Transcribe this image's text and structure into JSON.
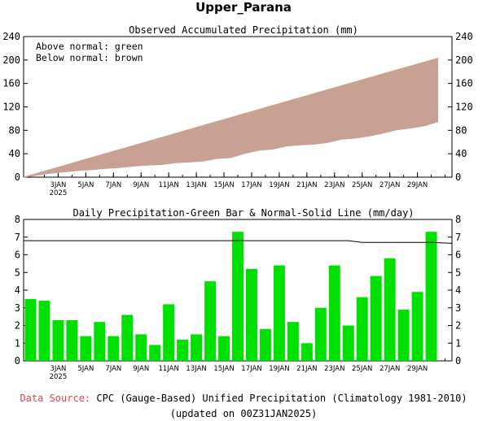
{
  "title": "Upper_Parana",
  "x_tick_labels": [
    "3JAN",
    "5JAN",
    "7JAN",
    "9JAN",
    "11JAN",
    "13JAN",
    "15JAN",
    "17JAN",
    "19JAN",
    "21JAN",
    "23JAN",
    "25JAN",
    "27JAN",
    "29JAN"
  ],
  "x_year_label": "2025",
  "legend": {
    "above": "Above normal: green",
    "below": "Below normal: brown"
  },
  "footer": {
    "source_label": "Data Source:",
    "source_text": "CPC (Gauge-Based) Unified Precipitation (Climatology 1981-2010)",
    "updated": "(updated on 00Z31JAN2025)"
  },
  "colors": {
    "below_fill": "#c8a194",
    "above_fill": "#00cc00",
    "bar": "#00e000",
    "line": "#000000"
  },
  "chart_data": [
    {
      "type": "area",
      "title": "Observed Accumulated Precipitation (mm)",
      "x_start": "1JAN2025",
      "x_end": "31JAN2025",
      "ylim": [
        0,
        240
      ],
      "yticks": [
        0,
        40,
        80,
        120,
        160,
        200,
        240
      ],
      "series": [
        {
          "name": "Observed",
          "values": [
            3.5,
            6.9,
            9.2,
            11.5,
            12.9,
            15.1,
            16.5,
            19.1,
            20.6,
            21.5,
            24.7,
            25.9,
            27.4,
            31.9,
            33.3,
            40.6,
            45.8,
            47.6,
            53.0,
            55.2,
            56.2,
            59.2,
            64.6,
            66.6,
            70.2,
            75.0,
            80.8,
            83.7,
            87.6,
            94.9
          ]
        },
        {
          "name": "Normal",
          "values": [
            6.8,
            13.6,
            20.4,
            27.2,
            34.0,
            40.8,
            47.6,
            54.3,
            61.1,
            67.9,
            74.7,
            81.5,
            88.3,
            95.1,
            101.9,
            108.7,
            115.4,
            122.2,
            129.0,
            135.8,
            142.5,
            149.3,
            156.1,
            162.8,
            169.6,
            176.3,
            183.1,
            189.8,
            196.5,
            203.2
          ]
        }
      ]
    },
    {
      "type": "bar",
      "title": "Daily Precipitation-Green Bar & Normal-Solid Line (mm/day)",
      "ylim": [
        0,
        8
      ],
      "yticks": [
        0,
        1,
        2,
        3,
        4,
        5,
        6,
        7,
        8
      ],
      "series": [
        {
          "name": "Daily",
          "values": [
            3.5,
            3.4,
            2.3,
            2.3,
            1.4,
            2.2,
            1.4,
            2.6,
            1.5,
            0.9,
            3.2,
            1.2,
            1.5,
            4.5,
            1.4,
            7.3,
            5.2,
            1.8,
            5.4,
            2.2,
            1.0,
            3.0,
            5.4,
            2.0,
            3.6,
            4.8,
            5.8,
            2.9,
            3.9,
            7.3
          ]
        },
        {
          "name": "Normal",
          "values": [
            6.8,
            6.8,
            6.8,
            6.8,
            6.8,
            6.8,
            6.8,
            6.8,
            6.8,
            6.8,
            6.8,
            6.8,
            6.8,
            6.8,
            6.8,
            6.8,
            6.8,
            6.8,
            6.8,
            6.8,
            6.8,
            6.8,
            6.8,
            6.8,
            6.7,
            6.7,
            6.7,
            6.7,
            6.7,
            6.7
          ]
        }
      ]
    }
  ]
}
